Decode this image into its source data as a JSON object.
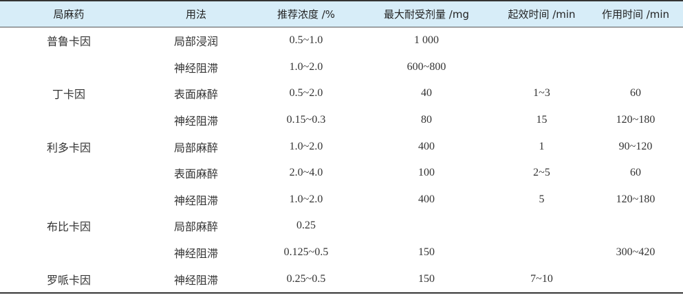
{
  "table": {
    "header": [
      "局麻药",
      "用法",
      "推荐浓度 /%",
      "最大耐受剂量 /mg",
      "起效时间 /min",
      "作用时间 /min"
    ],
    "rows": [
      [
        "普鲁卡因",
        "局部浸润",
        "0.5~1.0",
        "1 000",
        null,
        null
      ],
      [
        null,
        "神经阻滞",
        "1.0~2.0",
        "600~800",
        null,
        null
      ],
      [
        "丁卡因",
        "表面麻醉",
        "0.5~2.0",
        "40",
        "1~3",
        "60"
      ],
      [
        null,
        "神经阻滞",
        "0.15~0.3",
        "80",
        "15",
        "120~180"
      ],
      [
        "利多卡因",
        "局部麻醉",
        "1.0~2.0",
        "400",
        "1",
        "90~120"
      ],
      [
        null,
        "表面麻醉",
        "2.0~4.0",
        "100",
        "2~5",
        "60"
      ],
      [
        null,
        "神经阻滞",
        "1.0~2.0",
        "400",
        "5",
        "120~180"
      ],
      [
        "布比卡因",
        "局部麻醉",
        "0.25",
        null,
        null,
        null
      ],
      [
        null,
        "神经阻滞",
        "0.125~0.5",
        "150",
        null,
        "300~420"
      ],
      [
        "罗哌卡因",
        "神经阻滞",
        "0.25~0.5",
        "150",
        "7~10",
        null
      ]
    ]
  }
}
